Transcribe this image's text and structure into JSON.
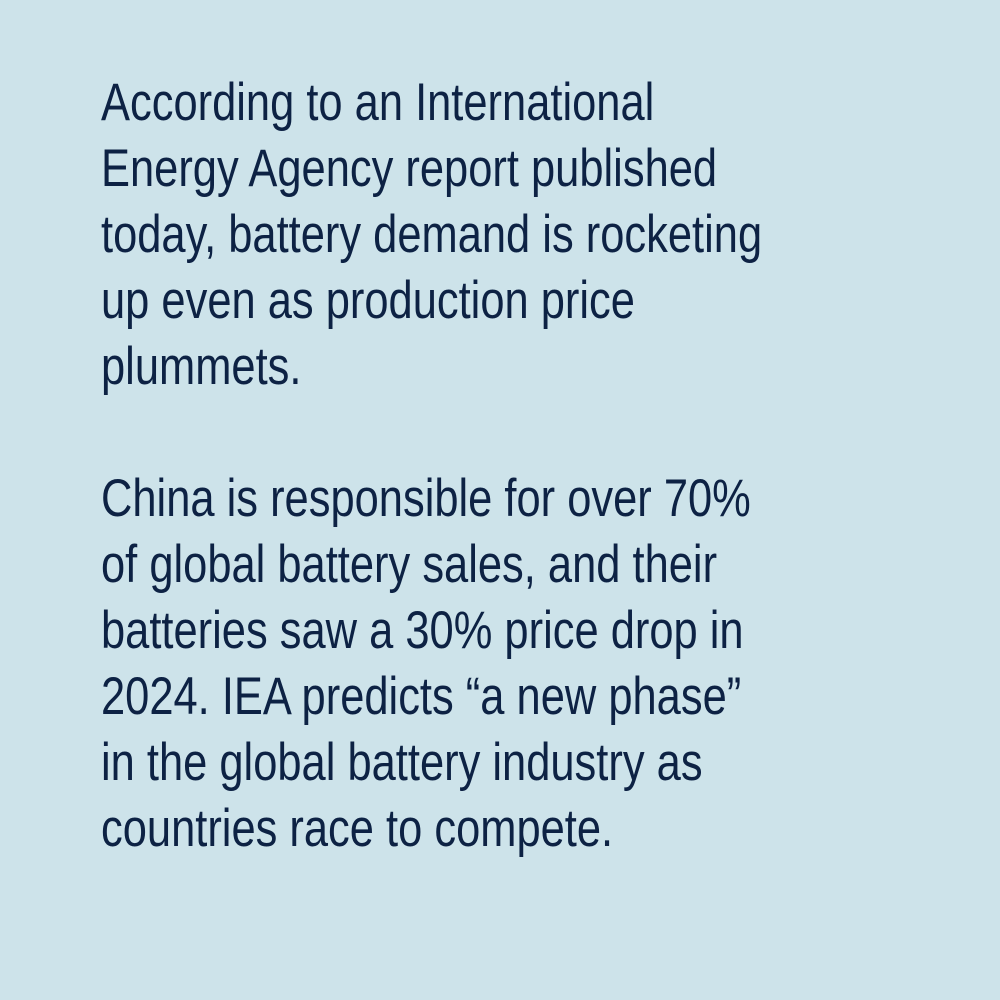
{
  "paragraphs": [
    {
      "lines": [
        "According to an International",
        "Energy Agency report published",
        "today, battery demand is rocketing",
        "up even as production price",
        "plummets."
      ]
    },
    {
      "lines": [
        "China is responsible for over 70%",
        "of global battery sales, and their",
        "batteries saw a 30% price drop in",
        "2024. IEA predicts “a new phase”",
        "in the global battery industry as",
        "countries race to compete."
      ]
    }
  ],
  "colors": {
    "background": "#cde3ea",
    "text": "#0d2244"
  }
}
